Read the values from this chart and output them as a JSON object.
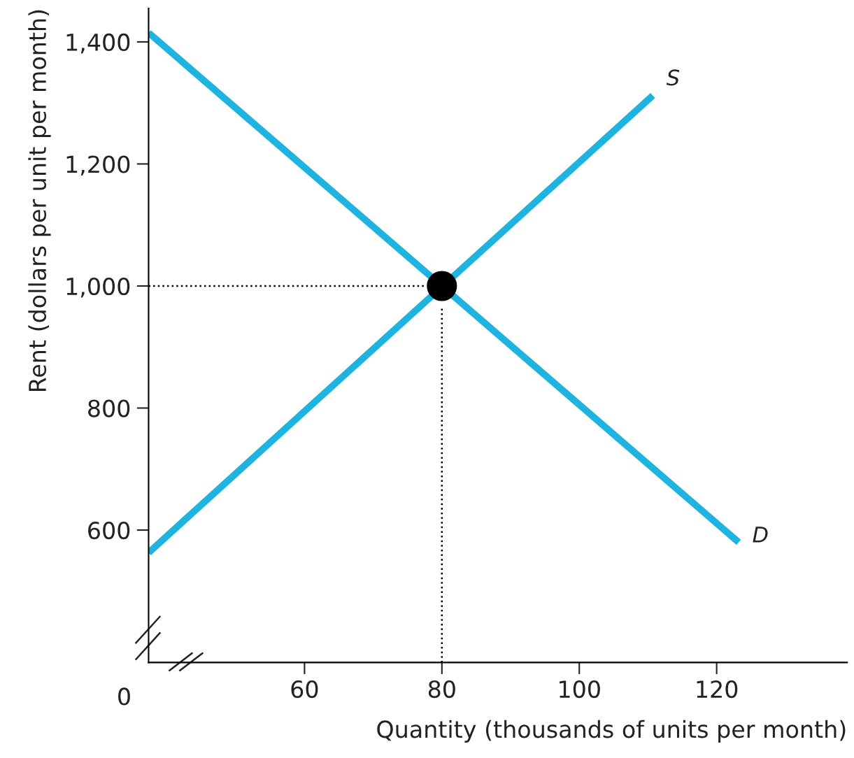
{
  "chart_data": {
    "type": "line",
    "xlabel": "Quantity (thousands of units per month)",
    "ylabel": "Rent (dollars per unit per month)",
    "xlim": [
      37.3,
      139
    ],
    "ylim": [
      383,
      1455
    ],
    "xticks": [
      60,
      80,
      100,
      120
    ],
    "yticks": [
      {
        "value": 600,
        "label": "600"
      },
      {
        "value": 800,
        "label": "800"
      },
      {
        "value": 1000,
        "label": "1,000"
      },
      {
        "value": 1200,
        "label": "1,200"
      },
      {
        "value": 1400,
        "label": "1,400"
      }
    ],
    "grid": false,
    "legend": false,
    "annotations": [
      "0"
    ],
    "series": [
      {
        "name": "D",
        "color": "#1fb3e0",
        "x": [
          37.3,
          123.2
        ],
        "values": [
          1415,
          580
        ]
      },
      {
        "name": "S",
        "color": "#1fb3e0",
        "x": [
          37.3,
          110.7
        ],
        "values": [
          563,
          1312
        ]
      },
      {
        "color": "#000000",
        "line_style": "dotted",
        "x": [
          37.3,
          77.6
        ],
        "values": [
          1000,
          1000
        ]
      },
      {
        "color": "#000000",
        "line_style": "dotted",
        "x": [
          80,
          80
        ],
        "values": [
          383,
          965
        ]
      },
      {
        "type": "scatter",
        "color": "#000000",
        "marker": "circle",
        "x": [
          80
        ],
        "values": [
          1000
        ]
      }
    ]
  }
}
